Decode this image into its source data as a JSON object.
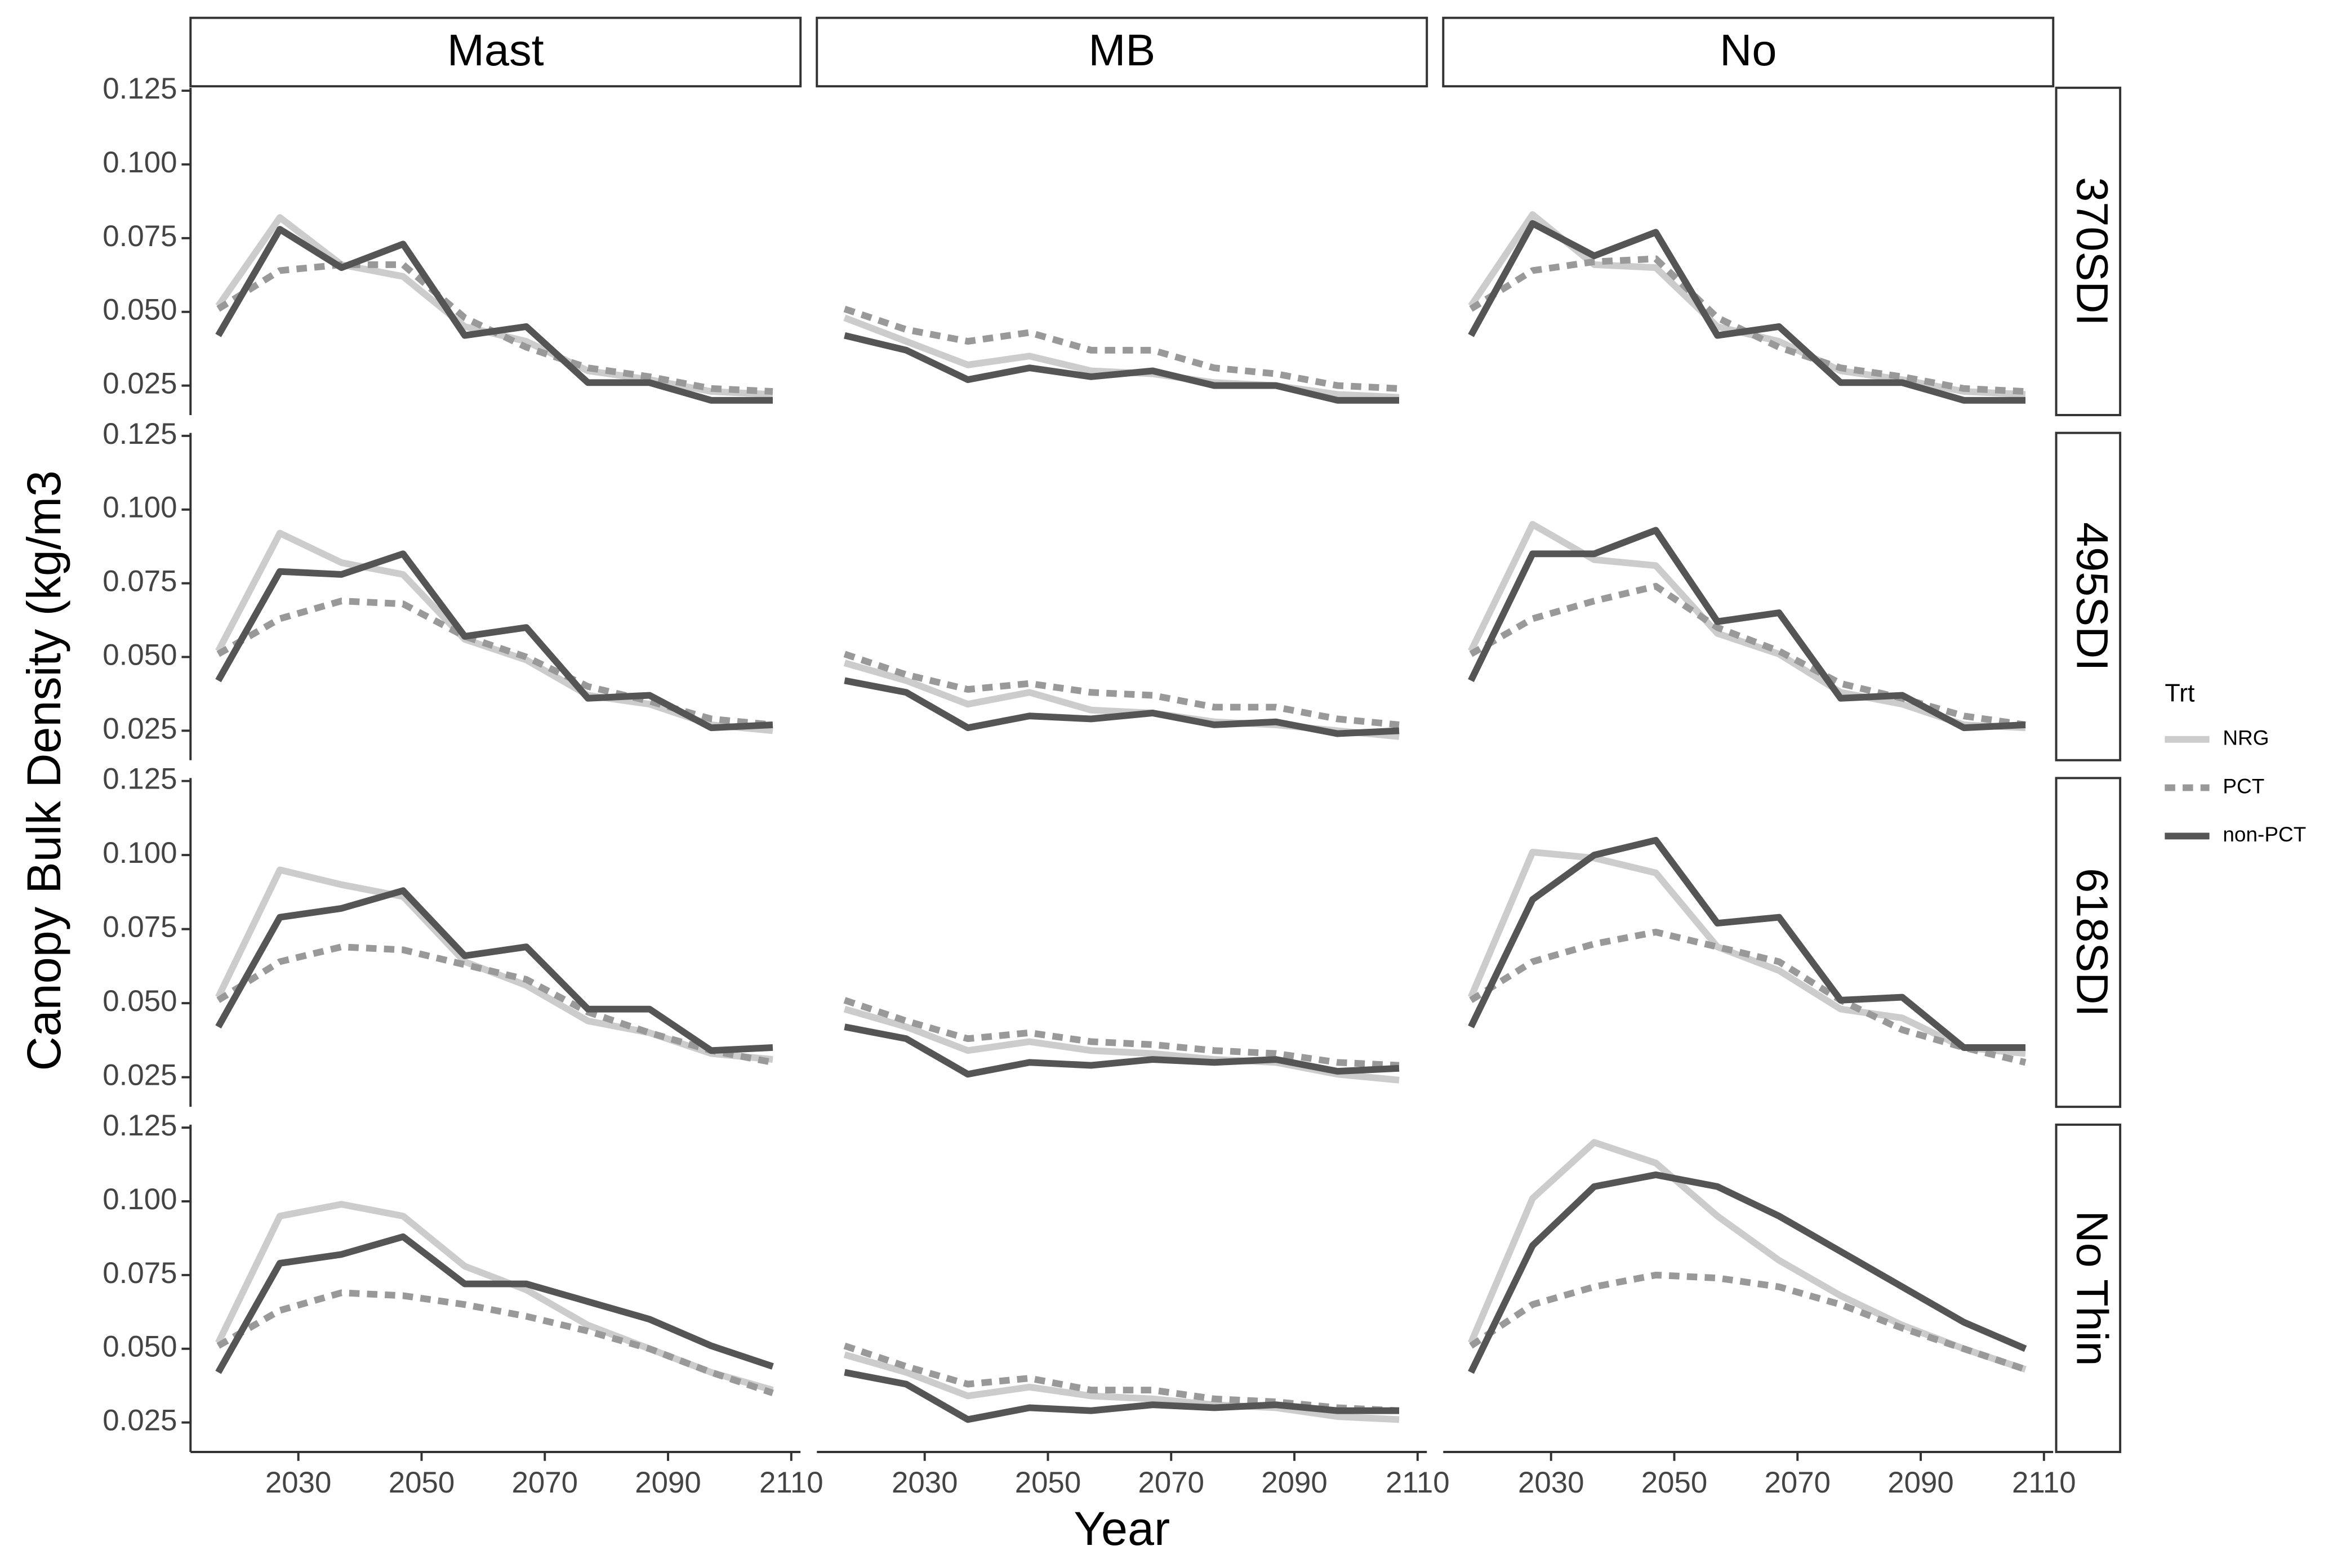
{
  "chart_data": {
    "type": "line",
    "ylabel": "Canopy Bulk Density (kg/m3",
    "xlabel": "Year",
    "legend_title": "Trt",
    "columns": [
      "Mast",
      "MB",
      "No"
    ],
    "rows": [
      "370SDI",
      "495SDI",
      "618SDI",
      "No Thin"
    ],
    "x": [
      2017,
      2027,
      2037,
      2047,
      2057,
      2067,
      2077,
      2087,
      2097,
      2107
    ],
    "xlim": [
      2012.5,
      2111.5
    ],
    "xticks": [
      2030,
      2050,
      2070,
      2090,
      2110
    ],
    "ylim": [
      0.015,
      0.126
    ],
    "yticks": [
      0.025,
      {
        "value": 0.05,
        "label": "0.050"
      },
      0.075,
      {
        "value": 0.1,
        "label": "0.100"
      },
      0.125
    ],
    "series": [
      {
        "name": "NRG",
        "color": "#cccccc",
        "dash": false
      },
      {
        "name": "PCT",
        "color": "#999999",
        "dash": true
      },
      {
        "name": "non-PCT",
        "color": "#555555",
        "dash": false
      }
    ],
    "panels": [
      [
        [
          [
            0.052,
            0.082,
            0.066,
            0.062,
            0.045,
            0.04,
            0.03,
            0.027,
            0.023,
            0.022
          ],
          [
            0.051,
            0.064,
            0.066,
            0.066,
            0.048,
            0.038,
            0.031,
            0.028,
            0.024,
            0.023
          ],
          [
            0.042,
            0.078,
            0.065,
            0.073,
            0.042,
            0.045,
            0.026,
            0.026,
            0.02,
            0.02
          ]
        ],
        [
          [
            0.048,
            0.04,
            0.032,
            0.035,
            0.03,
            0.029,
            0.026,
            0.025,
            0.022,
            0.021
          ],
          [
            0.051,
            0.044,
            0.04,
            0.043,
            0.037,
            0.037,
            0.031,
            0.029,
            0.025,
            0.024
          ],
          [
            0.042,
            0.037,
            0.027,
            0.031,
            0.028,
            0.03,
            0.025,
            0.025,
            0.02,
            0.02
          ]
        ],
        [
          [
            0.052,
            0.083,
            0.066,
            0.065,
            0.045,
            0.04,
            0.03,
            0.027,
            0.023,
            0.022
          ],
          [
            0.051,
            0.064,
            0.067,
            0.068,
            0.048,
            0.038,
            0.031,
            0.028,
            0.024,
            0.023
          ],
          [
            0.042,
            0.08,
            0.069,
            0.077,
            0.042,
            0.045,
            0.026,
            0.026,
            0.02,
            0.02
          ]
        ]
      ],
      [
        [
          [
            0.052,
            0.092,
            0.082,
            0.078,
            0.056,
            0.049,
            0.037,
            0.034,
            0.027,
            0.025
          ],
          [
            0.051,
            0.063,
            0.069,
            0.068,
            0.057,
            0.05,
            0.04,
            0.035,
            0.029,
            0.027
          ],
          [
            0.042,
            0.079,
            0.078,
            0.085,
            0.057,
            0.06,
            0.036,
            0.037,
            0.026,
            0.027
          ]
        ],
        [
          [
            0.048,
            0.042,
            0.034,
            0.038,
            0.032,
            0.031,
            0.028,
            0.027,
            0.025,
            0.023
          ],
          [
            0.051,
            0.044,
            0.039,
            0.041,
            0.038,
            0.037,
            0.033,
            0.033,
            0.029,
            0.027
          ],
          [
            0.042,
            0.038,
            0.026,
            0.03,
            0.029,
            0.031,
            0.027,
            0.028,
            0.024,
            0.025
          ]
        ],
        [
          [
            0.052,
            0.095,
            0.083,
            0.081,
            0.058,
            0.051,
            0.038,
            0.034,
            0.027,
            0.026
          ],
          [
            0.051,
            0.063,
            0.069,
            0.074,
            0.06,
            0.052,
            0.041,
            0.036,
            0.03,
            0.027
          ],
          [
            0.042,
            0.085,
            0.085,
            0.093,
            0.062,
            0.065,
            0.036,
            0.037,
            0.026,
            0.027
          ]
        ]
      ],
      [
        [
          [
            0.052,
            0.095,
            0.09,
            0.086,
            0.064,
            0.056,
            0.044,
            0.04,
            0.033,
            0.031
          ],
          [
            0.051,
            0.064,
            0.069,
            0.068,
            0.063,
            0.058,
            0.047,
            0.04,
            0.034,
            0.03
          ],
          [
            0.042,
            0.079,
            0.082,
            0.088,
            0.066,
            0.069,
            0.048,
            0.048,
            0.034,
            0.035
          ]
        ],
        [
          [
            0.048,
            0.042,
            0.034,
            0.037,
            0.034,
            0.033,
            0.031,
            0.03,
            0.026,
            0.024
          ],
          [
            0.051,
            0.044,
            0.038,
            0.04,
            0.037,
            0.036,
            0.034,
            0.033,
            0.03,
            0.029
          ],
          [
            0.042,
            0.038,
            0.026,
            0.03,
            0.029,
            0.031,
            0.03,
            0.031,
            0.027,
            0.028
          ]
        ],
        [
          [
            0.052,
            0.101,
            0.099,
            0.094,
            0.069,
            0.061,
            0.048,
            0.045,
            0.035,
            0.033
          ],
          [
            0.051,
            0.064,
            0.07,
            0.074,
            0.069,
            0.064,
            0.051,
            0.041,
            0.035,
            0.03
          ],
          [
            0.042,
            0.085,
            0.1,
            0.105,
            0.077,
            0.079,
            0.051,
            0.052,
            0.035,
            0.035
          ]
        ]
      ],
      [
        [
          [
            0.052,
            0.095,
            0.099,
            0.095,
            0.078,
            0.07,
            0.058,
            0.05,
            0.042,
            0.036
          ],
          [
            0.051,
            0.063,
            0.069,
            0.068,
            0.065,
            0.061,
            0.056,
            0.05,
            0.042,
            0.035
          ],
          [
            0.042,
            0.079,
            0.082,
            0.088,
            0.072,
            0.072,
            0.066,
            0.06,
            0.051,
            0.044
          ]
        ],
        [
          [
            0.048,
            0.042,
            0.034,
            0.037,
            0.034,
            0.033,
            0.031,
            0.03,
            0.027,
            0.026
          ],
          [
            0.051,
            0.044,
            0.038,
            0.04,
            0.036,
            0.036,
            0.033,
            0.032,
            0.03,
            0.029
          ],
          [
            0.042,
            0.038,
            0.026,
            0.03,
            0.029,
            0.031,
            0.03,
            0.031,
            0.029,
            0.029
          ]
        ],
        [
          [
            0.052,
            0.101,
            0.12,
            0.113,
            0.095,
            0.08,
            0.068,
            0.058,
            0.05,
            0.043
          ],
          [
            0.051,
            0.065,
            0.071,
            0.075,
            0.074,
            0.071,
            0.065,
            0.057,
            0.05,
            0.043
          ],
          [
            0.042,
            0.085,
            0.105,
            0.109,
            0.105,
            0.095,
            0.083,
            0.071,
            0.059,
            0.05
          ]
        ]
      ]
    ]
  }
}
